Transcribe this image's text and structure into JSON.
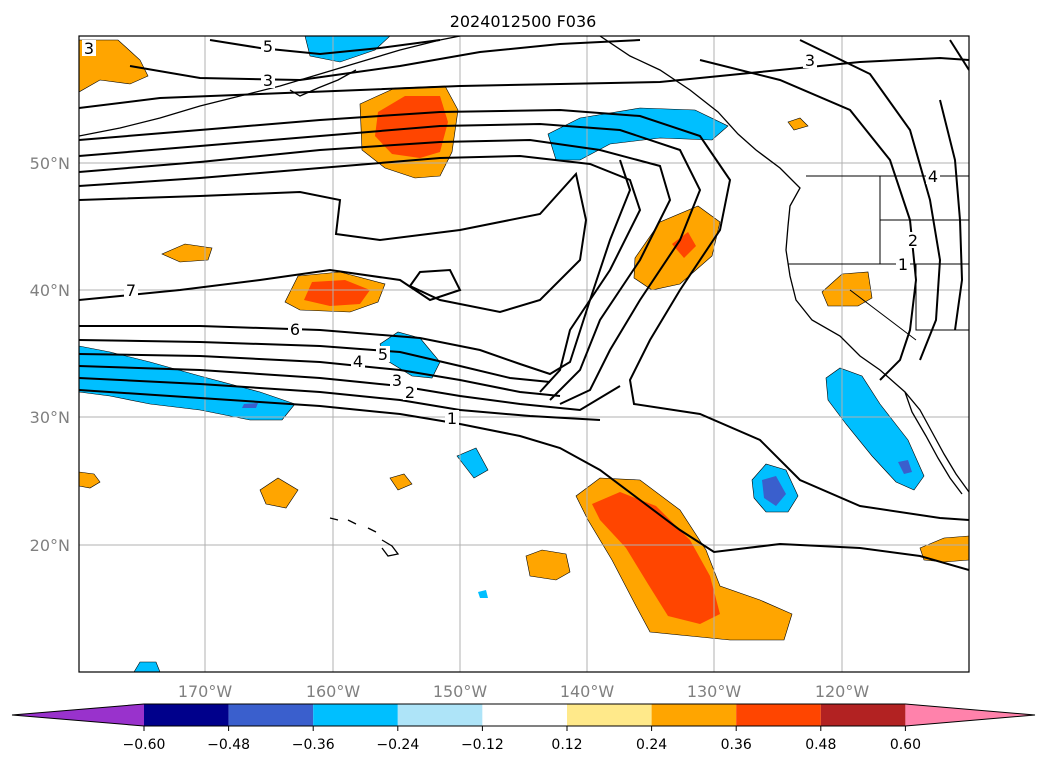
{
  "title": "2024012500 F036",
  "map": {
    "latitude_labels": [
      "50°N",
      "40°N",
      "30°N",
      "20°N"
    ],
    "longitude_labels": [
      "170°W",
      "160°W",
      "150°W",
      "140°W",
      "130°W",
      "120°W"
    ],
    "contour_labels": [
      "5",
      "3",
      "3",
      "7",
      "6",
      "5",
      "4",
      "3",
      "2",
      "1",
      "3",
      "4",
      "2",
      "1"
    ]
  },
  "colorbar": {
    "ticks": [
      "−0.60",
      "−0.48",
      "−0.36",
      "−0.24",
      "−0.12",
      "0.12",
      "0.24",
      "0.36",
      "0.48",
      "0.60"
    ],
    "colors": {
      "under": "#9932cc",
      "c1": "#00008b",
      "c2": "#3a5fcd",
      "c3": "#00bfff",
      "c4": "#aee4f8",
      "c5": "#ffffff",
      "c6": "#ffe98a",
      "c7": "#ffa500",
      "c8": "#ff4500",
      "c9": "#b22222",
      "over": "#ff82ab"
    }
  }
}
